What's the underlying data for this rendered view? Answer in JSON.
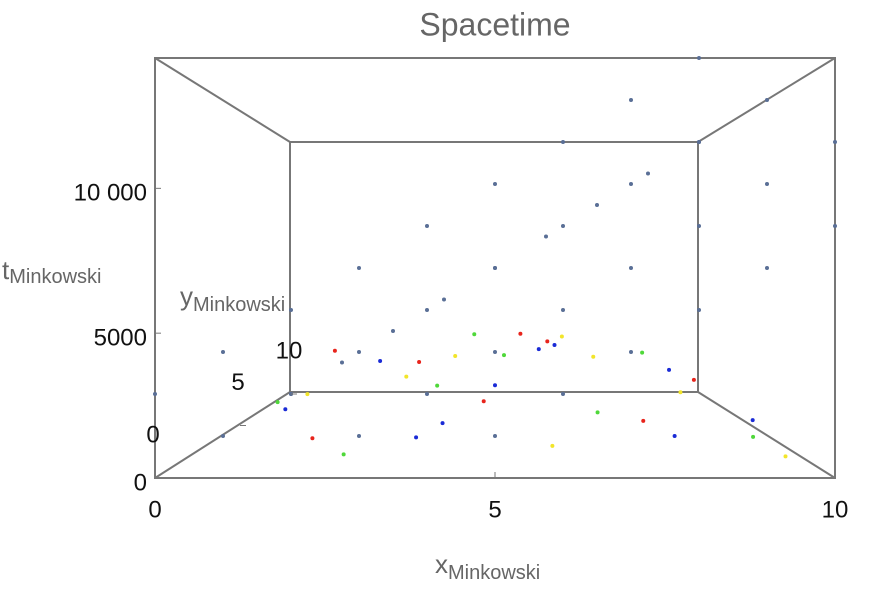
{
  "chart_data": {
    "type": "scatter3d",
    "title": "Spacetime",
    "xlabel": "x",
    "xlabel_sub": "Minkowski",
    "ylabel": "y",
    "ylabel_sub": "Minkowski",
    "tlabel": "t",
    "tlabel_sub": "Minkowski",
    "xlim": [
      0,
      10
    ],
    "xticks": [
      0,
      5,
      10
    ],
    "ylim": [
      0,
      10
    ],
    "yticks": [
      0,
      5,
      10
    ],
    "tlim": [
      0,
      14500
    ],
    "tticks": [
      0,
      5000,
      {
        "value": 10000,
        "label": "10 000"
      }
    ],
    "series": [
      {
        "color": "#5a6f96",
        "x": [
          1,
          2,
          3,
          4,
          5,
          6,
          7,
          8,
          9,
          3,
          4,
          5,
          6,
          7,
          8,
          9,
          10,
          5,
          6,
          7,
          8,
          9,
          10,
          0,
          1,
          2,
          3,
          4,
          5,
          6,
          7,
          8,
          1,
          2,
          3,
          4,
          5,
          6,
          7,
          8,
          9
        ],
        "y": [
          0,
          0,
          0,
          0,
          0,
          0,
          0,
          0,
          0,
          0,
          0,
          0,
          0,
          0,
          0,
          0,
          0,
          0,
          0,
          0,
          0,
          0,
          0,
          0,
          0,
          0,
          0,
          0,
          0,
          0,
          0,
          0,
          5,
          5,
          5,
          5,
          5,
          5,
          5,
          5,
          5
        ],
        "t": [
          1450,
          2900,
          4350,
          5800,
          7250,
          8700,
          10150,
          11600,
          13050,
          1450,
          2900,
          4350,
          5800,
          7250,
          8700,
          10150,
          11600,
          1450,
          2900,
          4350,
          5800,
          7250,
          8700,
          2900,
          4350,
          5800,
          7250,
          8700,
          10150,
          11600,
          13050,
          14500,
          1450,
          2900,
          4350,
          5800,
          7250,
          8700,
          10150,
          11600,
          13050
        ]
      },
      {
        "color": "#e8241c",
        "x": [
          2.1,
          3.4,
          4.8,
          6.2,
          7.5,
          8.9,
          1.5,
          5.6
        ],
        "y": [
          1.2,
          6.5,
          3.1,
          8.4,
          2.2,
          5.0,
          7.3,
          9.1
        ],
        "t": [
          900,
          2600,
          1700,
          3300,
          1200,
          2100,
          3000,
          3600
        ]
      },
      {
        "color": "#f2e52a",
        "x": [
          1.8,
          3.0,
          4.2,
          5.9,
          7.1,
          8.4,
          9.5,
          6.6
        ],
        "y": [
          2.4,
          8.0,
          5.5,
          1.0,
          6.8,
          3.7,
          0.8,
          9.4
        ],
        "t": [
          2200,
          1500,
          3100,
          700,
          2800,
          1900,
          400,
          3400
        ]
      },
      {
        "color": "#4fd83a",
        "x": [
          2.7,
          3.9,
          5.2,
          6.8,
          8.0,
          9.2,
          1.1,
          4.5
        ],
        "y": [
          0.5,
          4.4,
          7.7,
          2.9,
          5.8,
          1.6,
          3.3,
          9.6
        ],
        "t": [
          600,
          2000,
          2700,
          1300,
          3200,
          800,
          1600,
          3500
        ]
      },
      {
        "color": "#1a2bd6",
        "x": [
          1.3,
          2.5,
          3.7,
          5.0,
          6.4,
          7.8,
          8.6,
          9.8,
          4.1,
          6.0
        ],
        "y": [
          3.0,
          7.2,
          1.8,
          5.2,
          9.0,
          0.9,
          6.1,
          4.0,
          2.5,
          8.3
        ],
        "t": [
          1400,
          2500,
          700,
          1800,
          3000,
          1100,
          2300,
          600,
          1000,
          2900
        ]
      }
    ]
  }
}
